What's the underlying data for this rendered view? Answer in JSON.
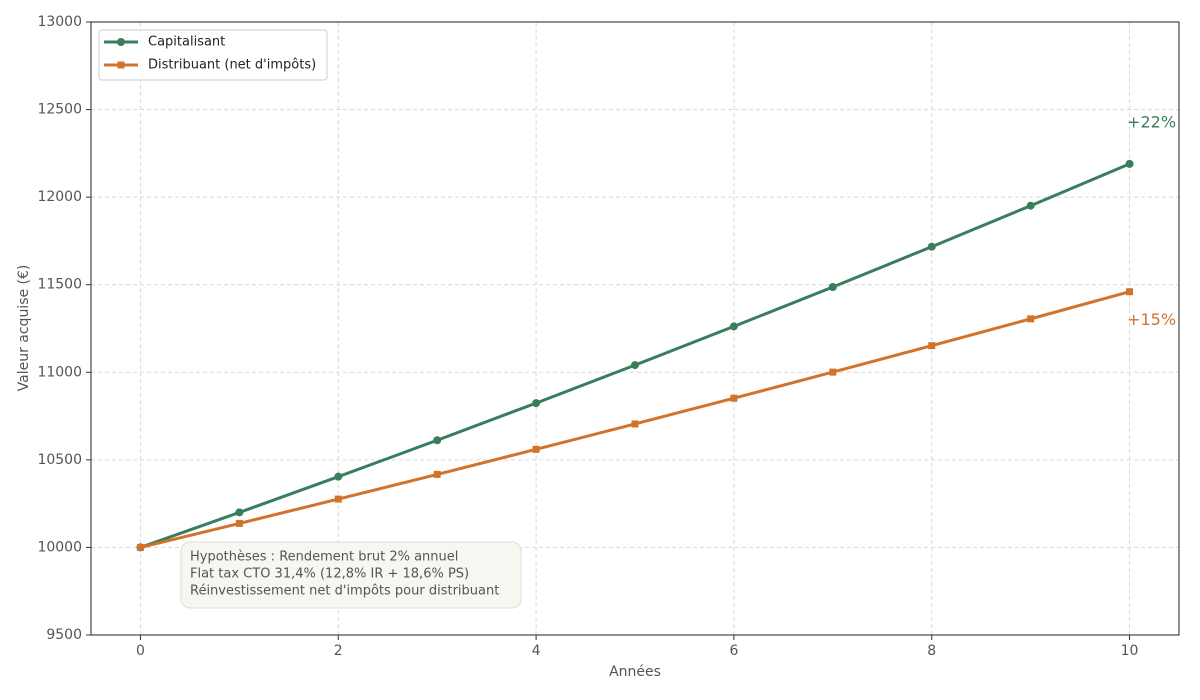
{
  "chart_data": {
    "type": "line",
    "x_label": "Années",
    "y_label": "Valeur acquise (€)",
    "x": [
      0,
      1,
      2,
      3,
      4,
      5,
      6,
      7,
      8,
      9,
      10
    ],
    "series": [
      {
        "name": "Capitalisant",
        "color": "#3a7d5c",
        "marker": "circle",
        "values": [
          10000,
          10200,
          10404,
          10612,
          10824,
          11041,
          11262,
          11487,
          11717,
          11951,
          12190
        ],
        "end_label": "+22%"
      },
      {
        "name": "Distribuant (net d'impôts)",
        "color": "#d2732c",
        "marker": "square",
        "values": [
          10000,
          10137,
          10276,
          10417,
          10560,
          10705,
          10852,
          11001,
          11152,
          11305,
          11460
        ],
        "end_label": "+15%"
      }
    ],
    "xlim": [
      -0.5,
      10.5
    ],
    "xticks": [
      0,
      2,
      4,
      6,
      8,
      10
    ],
    "ylim": [
      9500,
      13000
    ],
    "yticks": [
      9500,
      10000,
      10500,
      11000,
      11500,
      12000,
      12500,
      13000
    ],
    "grid": true,
    "legend": "upper left",
    "note": [
      "Hypothèses : Rendement brut 2% annuel",
      "Flat tax CTO 31,4% (12,8% IR + 18,6% PS)",
      "Réinvestissement net d'impôts pour distribuant"
    ]
  }
}
